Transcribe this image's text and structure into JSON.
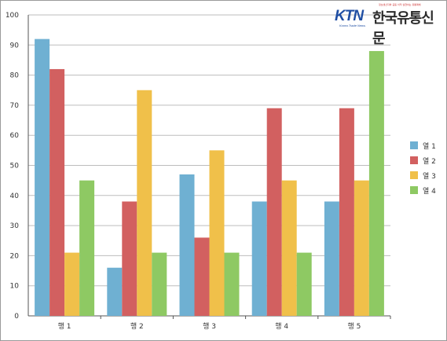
{
  "logo": {
    "brand": "KTN",
    "brand_sub": "Korea Trade News",
    "paper_name": "한국유통신문",
    "tagline": "정보생산자와 공동 이익 실현하는 유통매체"
  },
  "chart_data": {
    "type": "bar",
    "categories": [
      "행 1",
      "행 2",
      "행 3",
      "행 4",
      "행 5"
    ],
    "series": [
      {
        "name": "열 1",
        "values": [
          92,
          16,
          47,
          38,
          38
        ],
        "color": "#6fb0d2"
      },
      {
        "name": "열 2",
        "values": [
          82,
          38,
          26,
          69,
          69
        ],
        "color": "#d26060"
      },
      {
        "name": "열 3",
        "values": [
          21,
          75,
          55,
          45,
          45
        ],
        "color": "#f0c04a"
      },
      {
        "name": "열 4",
        "values": [
          45,
          21,
          21,
          21,
          88
        ],
        "color": "#8ec963"
      }
    ],
    "ylim": [
      0,
      100
    ],
    "yticks": [
      0,
      10,
      20,
      30,
      40,
      50,
      60,
      70,
      80,
      90,
      100
    ],
    "grid": true,
    "legend": "right",
    "title": "",
    "xlabel": "",
    "ylabel": ""
  }
}
